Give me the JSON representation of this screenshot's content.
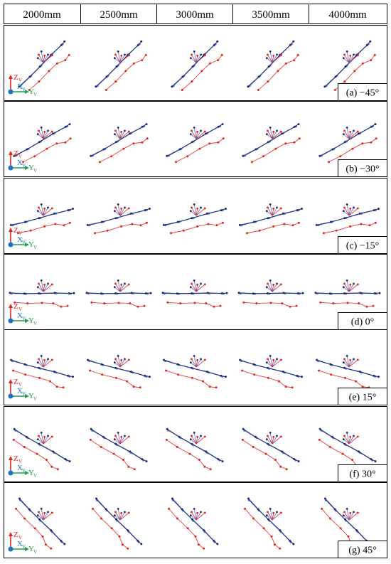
{
  "header": {
    "columns": [
      "2000mm",
      "2500mm",
      "3000mm",
      "3500mm",
      "4000mm"
    ]
  },
  "rows": [
    {
      "label": "(a) −45°",
      "angle": -45
    },
    {
      "label": "(b) −30°",
      "angle": -30
    },
    {
      "label": "(c) −15°",
      "angle": -15
    },
    {
      "label": "(d) 0°",
      "angle": 0
    },
    {
      "label": "(e) 15°",
      "angle": 15
    },
    {
      "label": "(f) 30°",
      "angle": 30
    },
    {
      "label": "(g) 45°",
      "angle": 45
    }
  ],
  "axis_legend": {
    "z": "Z",
    "z_sub": "V",
    "x": "X",
    "x_sub": "V",
    "y": "Y",
    "y_sub": "V"
  },
  "colors": {
    "navy": "#1f2a6e",
    "blue": "#4a6fd8",
    "red": "#e0261c",
    "axis_red": "#e0261c",
    "axis_blue": "#1a73c7",
    "axis_green": "#1fa24a"
  }
}
